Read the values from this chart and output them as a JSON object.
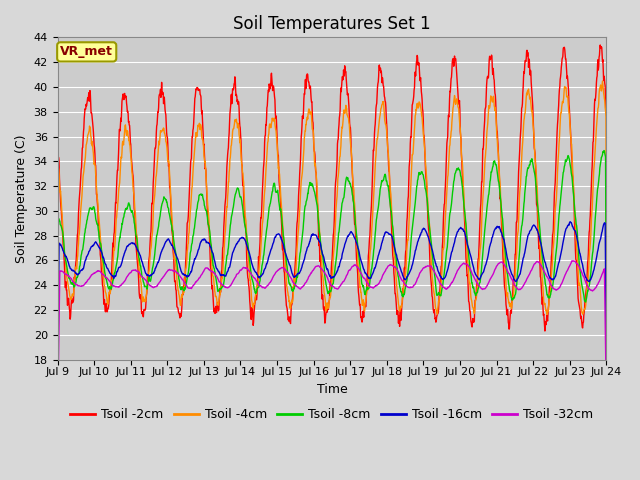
{
  "title": "Soil Temperatures Set 1",
  "xlabel": "Time",
  "ylabel": "Soil Temperature (C)",
  "xlim_start": 9.0,
  "xlim_end": 24.0,
  "ylim": [
    18,
    44
  ],
  "yticks": [
    18,
    20,
    22,
    24,
    26,
    28,
    30,
    32,
    34,
    36,
    38,
    40,
    42,
    44
  ],
  "xtick_positions": [
    9,
    10,
    11,
    12,
    13,
    14,
    15,
    16,
    17,
    18,
    19,
    20,
    21,
    22,
    23,
    24
  ],
  "xtick_labels": [
    "Jul 9",
    "Jul 10",
    "Jul 11",
    "Jul 12",
    "Jul 13",
    "Jul 14",
    "Jul 15",
    "Jul 16",
    "Jul 17",
    "Jul 18",
    "Jul 19",
    "Jul 20",
    "Jul 21",
    "Jul 22",
    "Jul 23",
    "Jul 24"
  ],
  "series": [
    {
      "label": "Tsoil -2cm",
      "color": "#ff0000",
      "lw": 1.0
    },
    {
      "label": "Tsoil -4cm",
      "color": "#ff8c00",
      "lw": 1.0
    },
    {
      "label": "Tsoil -8cm",
      "color": "#00cc00",
      "lw": 1.0
    },
    {
      "label": "Tsoil -16cm",
      "color": "#0000cc",
      "lw": 1.0
    },
    {
      "label": "Tsoil -32cm",
      "color": "#cc00cc",
      "lw": 1.0
    }
  ],
  "legend_label_box": "VR_met",
  "legend_box_facecolor": "#ffff99",
  "legend_box_edgecolor": "#999900",
  "bg_color": "#d8d8d8",
  "plot_bg_color": "#cccccc",
  "grid_color": "#bbbbbb",
  "title_fontsize": 12,
  "axis_fontsize": 9,
  "tick_fontsize": 8,
  "legend_fontsize": 9
}
